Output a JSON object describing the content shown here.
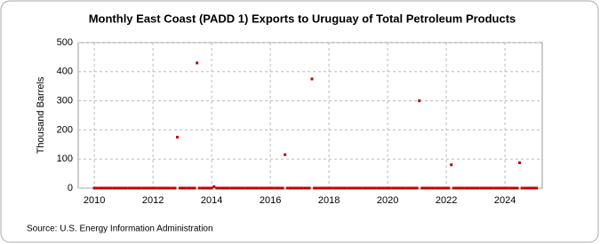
{
  "chart_data": {
    "type": "scatter",
    "title": "Monthly East Coast (PADD 1) Exports to Uruguay of Total Petroleum Products",
    "y_label": "Thousand Barrels",
    "source": "Source: U.S. Energy Information Administration",
    "color": "#c00000",
    "grid": true,
    "xlim": [
      2009.45,
      2025.27
    ],
    "ylim": [
      0,
      500
    ],
    "xticks": [
      2010,
      2012,
      2014,
      2016,
      2018,
      2020,
      2022,
      2024
    ],
    "yticks": [
      0,
      100,
      200,
      300,
      400,
      500
    ],
    "x": [
      2010.0,
      2010.08,
      2010.17,
      2010.25,
      2010.33,
      2010.42,
      2010.5,
      2010.58,
      2010.67,
      2010.75,
      2010.83,
      2010.92,
      2011.0,
      2011.08,
      2011.17,
      2011.25,
      2011.33,
      2011.42,
      2011.5,
      2011.58,
      2011.67,
      2011.75,
      2011.83,
      2011.92,
      2012.0,
      2012.08,
      2012.17,
      2012.25,
      2012.33,
      2012.42,
      2012.5,
      2012.58,
      2012.67,
      2012.75,
      2012.83,
      2012.92,
      2013.0,
      2013.08,
      2013.17,
      2013.25,
      2013.33,
      2013.42,
      2013.5,
      2013.58,
      2013.67,
      2013.75,
      2013.83,
      2013.92,
      2014.0,
      2014.08,
      2014.17,
      2014.25,
      2014.33,
      2014.42,
      2014.5,
      2014.58,
      2014.67,
      2014.75,
      2014.83,
      2014.92,
      2015.0,
      2015.08,
      2015.17,
      2015.25,
      2015.33,
      2015.42,
      2015.5,
      2015.58,
      2015.67,
      2015.75,
      2015.83,
      2015.92,
      2016.0,
      2016.08,
      2016.17,
      2016.25,
      2016.33,
      2016.42,
      2016.5,
      2016.58,
      2016.67,
      2016.75,
      2016.83,
      2016.92,
      2017.0,
      2017.08,
      2017.17,
      2017.25,
      2017.33,
      2017.42,
      2017.5,
      2017.58,
      2017.67,
      2017.75,
      2017.83,
      2017.92,
      2018.0,
      2018.08,
      2018.17,
      2018.25,
      2018.33,
      2018.42,
      2018.5,
      2018.58,
      2018.67,
      2018.75,
      2018.83,
      2018.92,
      2019.0,
      2019.08,
      2019.17,
      2019.25,
      2019.33,
      2019.42,
      2019.5,
      2019.58,
      2019.67,
      2019.75,
      2019.83,
      2019.92,
      2020.0,
      2020.08,
      2020.17,
      2020.25,
      2020.33,
      2020.42,
      2020.5,
      2020.58,
      2020.67,
      2020.75,
      2020.83,
      2020.92,
      2021.0,
      2021.08,
      2021.17,
      2021.25,
      2021.33,
      2021.42,
      2021.5,
      2021.58,
      2021.67,
      2021.75,
      2021.83,
      2021.92,
      2022.0,
      2022.08,
      2022.17,
      2022.25,
      2022.33,
      2022.42,
      2022.5,
      2022.58,
      2022.67,
      2022.75,
      2022.83,
      2022.92,
      2023.0,
      2023.08,
      2023.17,
      2023.25,
      2023.33,
      2023.42,
      2023.5,
      2023.58,
      2023.67,
      2023.75,
      2023.83,
      2023.92,
      2024.0,
      2024.08,
      2024.17,
      2024.25,
      2024.33,
      2024.42,
      2024.5,
      2024.58,
      2024.67,
      2024.75,
      2024.83,
      2024.92,
      2025.0,
      2025.08
    ],
    "values": [
      0,
      0,
      0,
      0,
      0,
      0,
      0,
      0,
      0,
      0,
      0,
      0,
      0,
      0,
      0,
      0,
      0,
      0,
      0,
      0,
      0,
      0,
      0,
      0,
      0,
      0,
      0,
      0,
      0,
      0,
      0,
      0,
      0,
      0,
      175,
      0,
      0,
      0,
      0,
      0,
      0,
      0,
      430,
      0,
      0,
      0,
      0,
      0,
      0,
      5,
      0,
      0,
      0,
      0,
      0,
      0,
      0,
      0,
      0,
      0,
      0,
      0,
      0,
      0,
      0,
      0,
      0,
      0,
      0,
      0,
      0,
      0,
      0,
      0,
      0,
      0,
      0,
      0,
      115,
      0,
      0,
      0,
      0,
      0,
      0,
      0,
      0,
      0,
      0,
      375,
      0,
      0,
      0,
      0,
      0,
      0,
      0,
      0,
      0,
      0,
      0,
      0,
      0,
      0,
      0,
      0,
      0,
      0,
      0,
      0,
      0,
      0,
      0,
      0,
      0,
      0,
      0,
      0,
      0,
      0,
      0,
      0,
      0,
      0,
      0,
      0,
      0,
      0,
      0,
      0,
      0,
      0,
      0,
      300,
      0,
      0,
      0,
      0,
      0,
      0,
      0,
      0,
      0,
      0,
      0,
      0,
      80,
      0,
      0,
      0,
      0,
      0,
      0,
      0,
      0,
      0,
      0,
      0,
      0,
      0,
      0,
      0,
      0,
      0,
      0,
      0,
      0,
      0,
      0,
      0,
      0,
      0,
      0,
      0,
      87,
      0,
      0,
      0,
      0,
      0,
      0,
      0
    ]
  }
}
